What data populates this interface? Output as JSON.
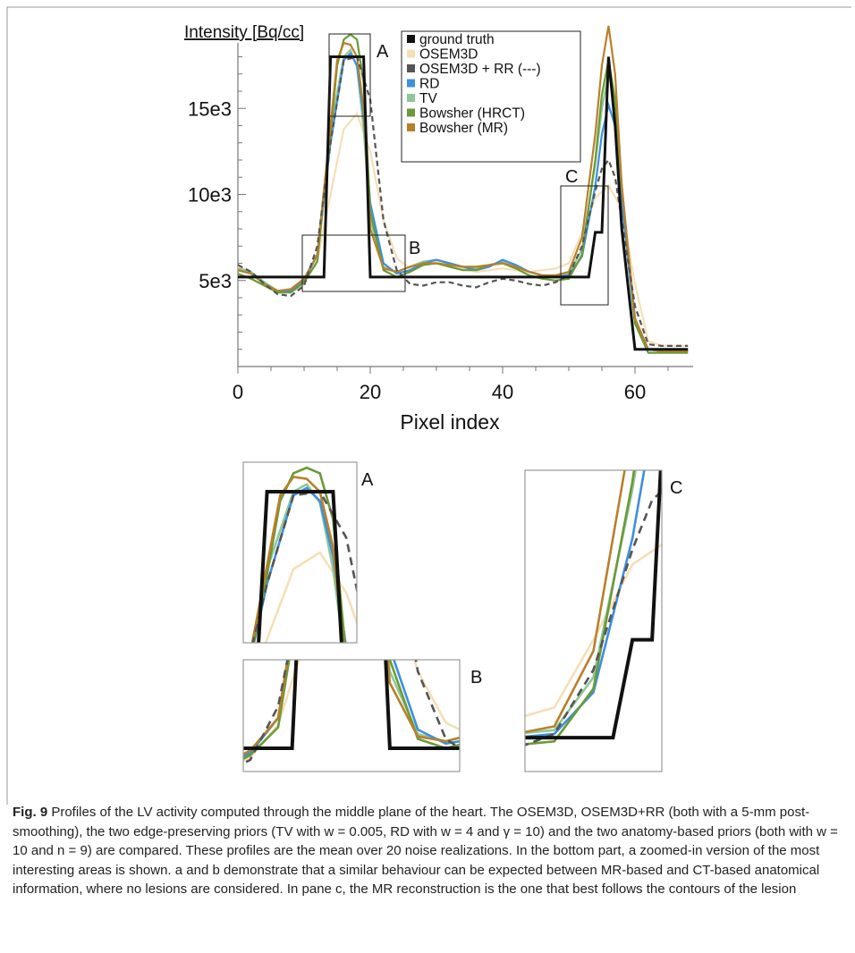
{
  "chart_data": [
    {
      "type": "line",
      "ylabel": "Intensity [Bq/cc]",
      "xlabel": "Pixel index",
      "xlim": [
        0,
        68
      ],
      "ylim": [
        0,
        20000
      ],
      "x_ticks": [
        "0",
        "20",
        "40",
        "60"
      ],
      "y_ticks": [
        "5e3",
        "10e3",
        "15e3"
      ],
      "legend": [
        "ground truth",
        "OSEM3D",
        "OSEM3D + RR (---)",
        "RD",
        "TV",
        "Bowsher (HRCT)",
        "Bowsher (MR)"
      ],
      "legend_position": "top-right",
      "region_labels": [
        "A",
        "B",
        "C"
      ],
      "series": [
        {
          "name": "ground truth",
          "color": "#111111",
          "x": [
            0,
            2,
            4,
            6,
            8,
            10,
            12,
            13,
            14,
            16,
            18,
            19,
            20,
            22,
            24,
            30,
            40,
            50,
            52,
            53,
            54,
            55,
            56,
            57,
            58,
            60,
            62,
            65,
            68
          ],
          "y": [
            5200,
            5200,
            5200,
            5200,
            5200,
            5200,
            5200,
            5200,
            18000,
            18000,
            18000,
            18000,
            5200,
            5200,
            5200,
            5200,
            5200,
            5200,
            5200,
            5200,
            7800,
            7800,
            18000,
            14000,
            8000,
            1000,
            1000,
            1000,
            1000
          ]
        },
        {
          "name": "OSEM3D",
          "color": "#f5dfb8",
          "x": [
            0,
            2,
            4,
            6,
            8,
            10,
            12,
            14,
            16,
            18,
            20,
            22,
            24,
            26,
            28,
            30,
            32,
            34,
            36,
            38,
            40,
            42,
            44,
            46,
            48,
            50,
            52,
            54,
            56,
            58,
            60,
            62,
            64,
            66,
            68
          ],
          "y": [
            5800,
            5500,
            4900,
            4400,
            4300,
            4800,
            6200,
            10000,
            13800,
            14700,
            12500,
            8500,
            6300,
            5700,
            5900,
            6100,
            5900,
            5700,
            5500,
            5600,
            5700,
            5600,
            5500,
            5600,
            5700,
            6000,
            7800,
            9800,
            10500,
            9200,
            4800,
            1500,
            1200,
            1200,
            1200
          ]
        },
        {
          "name": "OSEM3D + RR (---)",
          "color": "#555555",
          "dashed": true,
          "x": [
            0,
            2,
            4,
            6,
            8,
            10,
            12,
            14,
            16,
            18,
            20,
            22,
            24,
            26,
            28,
            30,
            32,
            34,
            36,
            38,
            40,
            42,
            44,
            46,
            48,
            50,
            52,
            54,
            55,
            56,
            57,
            58,
            60,
            62,
            64,
            66,
            68
          ],
          "y": [
            5900,
            5500,
            4800,
            4200,
            4100,
            4700,
            7000,
            13000,
            17800,
            18000,
            15500,
            8500,
            5600,
            4800,
            4700,
            4900,
            4900,
            4700,
            4600,
            4900,
            5100,
            5000,
            4800,
            4700,
            4900,
            5300,
            7000,
            10200,
            11500,
            12000,
            11000,
            8500,
            3500,
            1300,
            1200,
            1200,
            1200
          ]
        },
        {
          "name": "RD",
          "color": "#3d8fe0",
          "x": [
            0,
            2,
            4,
            6,
            8,
            10,
            12,
            14,
            16,
            17,
            18,
            19,
            20,
            22,
            24,
            26,
            28,
            30,
            32,
            34,
            36,
            38,
            40,
            42,
            44,
            46,
            48,
            50,
            52,
            54,
            55,
            56,
            57,
            58,
            60,
            62,
            64,
            66,
            68
          ],
          "y": [
            5600,
            5400,
            4800,
            4300,
            4400,
            5000,
            6500,
            13000,
            17800,
            18200,
            17500,
            14500,
            9500,
            6000,
            5400,
            5600,
            6000,
            6200,
            6000,
            5800,
            5600,
            5800,
            6200,
            5900,
            5500,
            5300,
            5200,
            5300,
            6400,
            10500,
            13500,
            15200,
            14000,
            9500,
            2500,
            1000,
            900,
            900,
            900
          ]
        },
        {
          "name": "TV",
          "color": "#8ec89a",
          "x": [
            0,
            2,
            4,
            6,
            8,
            10,
            12,
            14,
            16,
            17,
            18,
            19,
            20,
            22,
            24,
            26,
            28,
            30,
            32,
            34,
            36,
            38,
            40,
            42,
            44,
            46,
            48,
            50,
            52,
            54,
            55,
            56,
            57,
            58,
            60,
            62,
            64,
            66,
            68
          ],
          "y": [
            5700,
            5500,
            4900,
            4400,
            4400,
            5000,
            6500,
            13800,
            18000,
            18400,
            17400,
            13800,
            8500,
            5800,
            5500,
            5800,
            6100,
            6200,
            6000,
            5800,
            5700,
            5900,
            6100,
            5900,
            5500,
            5300,
            5300,
            5400,
            6800,
            11800,
            15000,
            17000,
            15500,
            10500,
            2800,
            1000,
            900,
            900,
            900
          ]
        },
        {
          "name": "Bowsher (HRCT)",
          "color": "#6b9a36",
          "x": [
            0,
            2,
            4,
            6,
            8,
            10,
            12,
            14,
            15,
            16,
            17,
            18,
            19,
            20,
            22,
            24,
            26,
            28,
            30,
            32,
            34,
            36,
            38,
            40,
            42,
            44,
            46,
            48,
            50,
            52,
            54,
            55,
            56,
            57,
            58,
            60,
            62,
            64,
            66,
            68
          ],
          "y": [
            5400,
            5100,
            4700,
            4300,
            4300,
            4900,
            6100,
            13500,
            17500,
            19000,
            19300,
            19000,
            16500,
            9000,
            5600,
            5200,
            5500,
            5900,
            6000,
            5800,
            5600,
            5600,
            5900,
            6000,
            5700,
            5300,
            5100,
            5000,
            5100,
            6500,
            12000,
            15800,
            17800,
            15500,
            10500,
            2500,
            800,
            800,
            800,
            800
          ]
        },
        {
          "name": "Bowsher (MR)",
          "color": "#b8802a",
          "x": [
            0,
            2,
            4,
            6,
            8,
            10,
            12,
            14,
            15,
            16,
            17,
            18,
            19,
            20,
            22,
            24,
            26,
            28,
            30,
            32,
            34,
            36,
            38,
            40,
            42,
            44,
            46,
            48,
            50,
            52,
            54,
            55,
            56,
            57,
            58,
            60,
            62,
            64,
            66,
            68
          ],
          "y": [
            5600,
            5400,
            4800,
            4400,
            4500,
            5100,
            6500,
            14000,
            17800,
            18800,
            18700,
            18000,
            15000,
            8000,
            5700,
            5500,
            5800,
            6000,
            6000,
            5900,
            5800,
            5800,
            5900,
            6000,
            5800,
            5500,
            5300,
            5300,
            5500,
            7500,
            13500,
            17500,
            19800,
            17000,
            10500,
            2800,
            1000,
            900,
            900,
            900
          ]
        }
      ]
    }
  ],
  "insets": {
    "a_label": "A",
    "b_label": "B",
    "c_label": "C"
  },
  "caption": {
    "label": "Fig. 9",
    "text": "Profiles of the LV activity computed through the middle plane of the heart. The OSEM3D, OSEM3D+RR (both with a 5-mm post-smoothing), the two edge-preserving priors (TV with w = 0.005, RD with w = 4 and γ = 10) and the two anatomy-based priors (both with w = 10 and n = 9) are compared. These profiles are the mean over 20 noise realizations. In the bottom part, a zoomed-in version of the most interesting areas is shown. a and b demonstrate that a similar behaviour can be expected between MR-based and CT-based anatomical information, where no lesions are considered. In pane c, the MR reconstruction is the one that best follows the contours of the lesion"
  }
}
